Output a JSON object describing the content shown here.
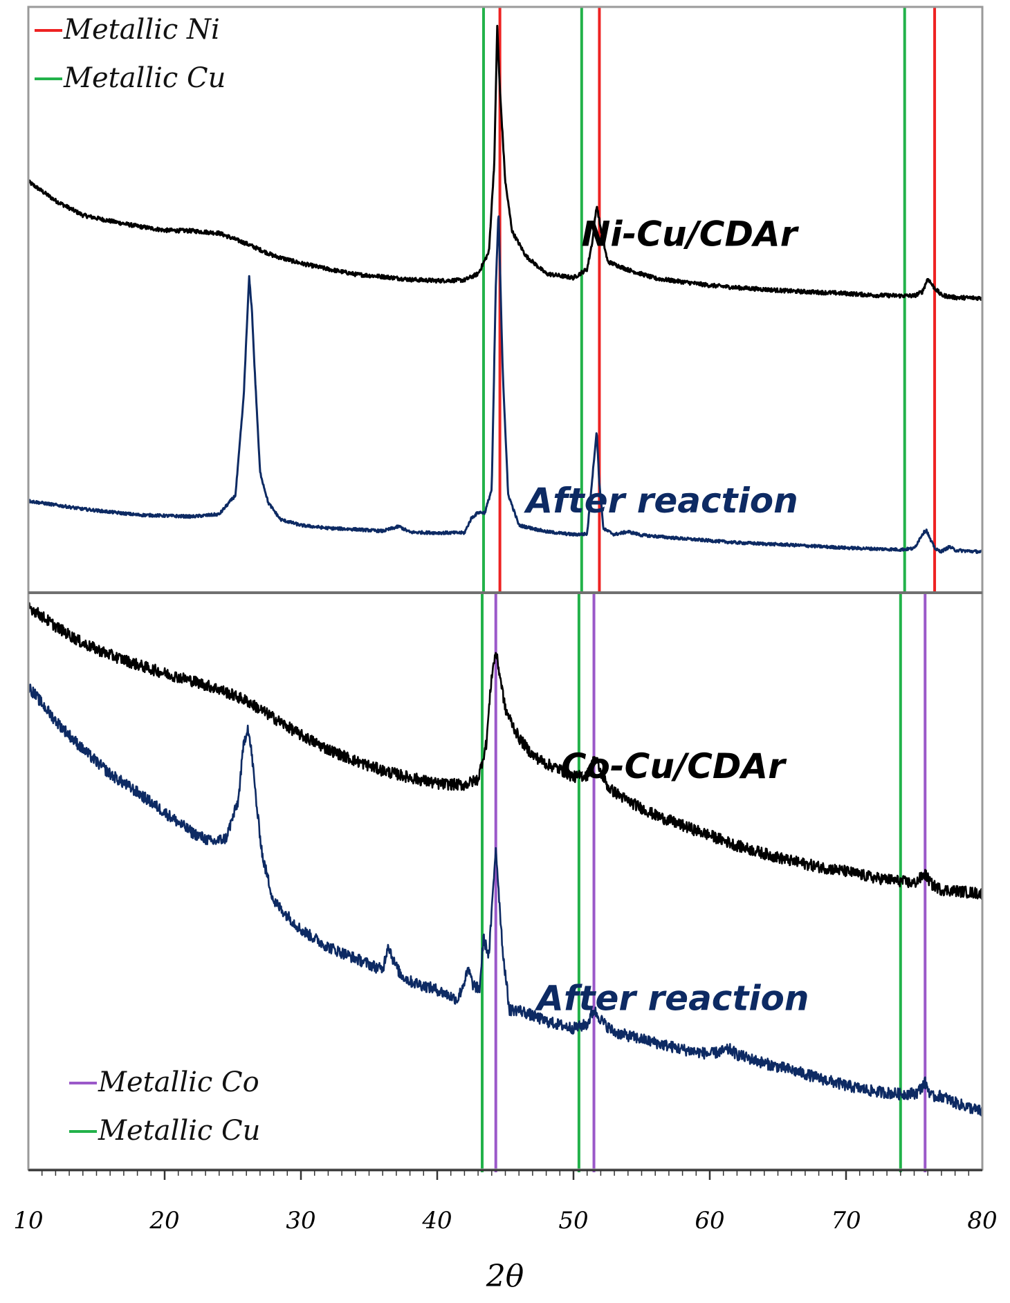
{
  "chart_data": {
    "type": "line",
    "title": "",
    "xlabel": "2θ",
    "ylabel": "",
    "xlim": [
      10,
      80
    ],
    "xticks": [
      10,
      20,
      30,
      40,
      50,
      60,
      70,
      80
    ],
    "colors": {
      "as_prepared": "#000000",
      "after_reaction": "#0d2a63",
      "metallic_ni": "#ee2222",
      "metallic_cu": "#22b24a",
      "metallic_co": "#9b59c9"
    },
    "panels": [
      {
        "id": "top",
        "ylim": [
          0,
          100
        ],
        "legend": {
          "position": "top-left",
          "entries": [
            {
              "label": "Metallic Ni",
              "color_key": "metallic_ni"
            },
            {
              "label": "Metallic Cu",
              "color_key": "metallic_cu"
            }
          ]
        },
        "reference_lines": [
          {
            "phase": "Metallic Cu",
            "color_key": "metallic_cu",
            "positions": [
              43.4,
              50.6,
              74.3
            ]
          },
          {
            "phase": "Metallic Ni",
            "color_key": "metallic_ni",
            "positions": [
              44.6,
              51.9,
              76.5
            ]
          }
        ],
        "series": [
          {
            "name": "Ni-Cu/CDAr",
            "color_key": "as_prepared",
            "label": "Ni-Cu/CDAr",
            "label_anchor": {
              "x": 58.5,
              "y": 59
            },
            "noise": 0.35,
            "x": [
              10,
              12,
              14,
              16,
              18,
              20,
              22,
              24,
              26,
              28,
              30,
              32,
              34,
              36,
              38,
              40,
              42,
              43,
              43.8,
              44.2,
              44.4,
              44.6,
              45,
              45.5,
              46.5,
              48,
              50,
              51,
              51.4,
              51.7,
              52,
              52.5,
              54,
              56,
              58,
              60,
              62,
              64,
              66,
              68,
              70,
              72,
              74,
              75,
              75.6,
              76,
              76.4,
              77,
              78,
              80
            ],
            "y": [
              70.1,
              66.8,
              64.3,
              63.3,
              62.4,
              61.7,
              61.6,
              61.2,
              59.4,
              57.3,
              56.0,
              55.0,
              54.1,
              53.7,
              53.2,
              53.0,
              53.1,
              54.2,
              58,
              74,
              97,
              86,
              70,
              61.5,
              57.3,
              54.2,
              53.5,
              55,
              60,
              66,
              62,
              56.3,
              54.9,
              53.4,
              52.8,
              52.2,
              51.8,
              51.5,
              51.2,
              51.0,
              50.8,
              50.5,
              50.4,
              50.4,
              51.1,
              53.4,
              52,
              50.5,
              50.1,
              50.0
            ]
          },
          {
            "name": "After reaction",
            "color_key": "after_reaction",
            "label": "After reaction",
            "label_anchor": {
              "x": 56.5,
              "y": 13
            },
            "noise": 0.25,
            "x": [
              10,
              14,
              18,
              22,
              24,
              25.2,
              25.8,
              26.2,
              26.4,
              26.6,
              27,
              27.6,
              28.5,
              30,
              32,
              34,
              36,
              37.2,
              38,
              40,
              42,
              42.5,
              43,
              43.5,
              44,
              44.3,
              44.5,
              44.8,
              45.2,
              46,
              48,
              50,
              51,
              51.5,
              51.7,
              51.9,
              52.2,
              53,
              54,
              55,
              56,
              58,
              62,
              66,
              70,
              74,
              75,
              75.6,
              75.9,
              76.2,
              76.6,
              77,
              77.6,
              78,
              80
            ],
            "y": [
              15.0,
              13.6,
              12.6,
              12.3,
              12.7,
              16.0,
              33.0,
              53.7,
              48.0,
              38.0,
              20.0,
              14.7,
              11.8,
              10.8,
              10.3,
              10.1,
              9.8,
              10.6,
              9.6,
              9.5,
              9.5,
              12.0,
              13.0,
              13.0,
              17.0,
              52.0,
              65.0,
              38.0,
              16.2,
              10.8,
              9.7,
              9.2,
              9.3,
              22,
              27,
              18,
              10.2,
              9.2,
              9.7,
              9.1,
              8.9,
              8.5,
              7.8,
              7.4,
              6.9,
              6.6,
              6.8,
              9.3,
              10.0,
              8.2,
              6.6,
              6.3,
              7.1,
              6.5,
              6.2
            ]
          }
        ]
      },
      {
        "id": "bottom",
        "ylim": [
          0,
          100
        ],
        "legend": {
          "position": "bottom-left",
          "entries": [
            {
              "label": "Metallic Co",
              "color_key": "metallic_co"
            },
            {
              "label": "Metallic Cu",
              "color_key": "metallic_cu"
            }
          ]
        },
        "reference_lines": [
          {
            "phase": "Metallic Cu",
            "color_key": "metallic_cu",
            "positions": [
              43.3,
              50.4,
              74.0
            ]
          },
          {
            "phase": "Metallic Co",
            "color_key": "metallic_co",
            "positions": [
              44.3,
              51.5,
              75.8
            ]
          }
        ],
        "series": [
          {
            "name": "Co-Cu/CDAr",
            "color_key": "as_prepared",
            "label": "Co-Cu/CDAr",
            "label_anchor": {
              "x": 57.3,
              "y": 68
            },
            "noise": 1.0,
            "x": [
              10,
              12,
              14,
              16,
              18,
              20,
              22,
              24,
              26,
              28,
              30,
              32,
              34,
              36,
              38,
              40,
              42,
              43,
              43.6,
              44,
              44.3,
              44.6,
              45,
              46,
              47,
              48,
              49,
              50,
              51,
              51.6,
              52,
              52.6,
              54,
              56,
              58,
              60,
              62,
              64,
              66,
              68,
              70,
              72,
              74,
              75,
              75.8,
              76.3,
              77,
              78,
              80
            ],
            "y": [
              98,
              94.5,
              91.5,
              89.5,
              87.8,
              86.3,
              85,
              83.5,
              81.5,
              78.5,
              75.5,
              73,
              71,
              69.3,
              68.1,
              67,
              66.8,
              67.8,
              74,
              86,
              90,
              86,
              80,
              75,
              72,
              70.5,
              69.5,
              68.2,
              68.5,
              71.7,
              69,
              66.2,
              64,
              61.5,
              59.7,
              58,
              56.2,
              54.8,
              53.5,
              52.5,
              51.7,
              50.6,
              50.0,
              49.6,
              51.2,
              49.4,
              48.5,
              48.3,
              47.8
            ]
          },
          {
            "name": "After reaction",
            "color_key": "after_reaction",
            "label": "After reaction",
            "label_anchor": {
              "x": 57.3,
              "y": 27.5
            },
            "noise": 1.0,
            "x": [
              10,
              12,
              14,
              16,
              18,
              20,
              22,
              23.5,
              24.5,
              25.4,
              25.8,
              26.1,
              26.4,
              26.8,
              27.2,
              28,
              29,
              30,
              32,
              34,
              36,
              36.4,
              36.8,
              37.3,
              38,
              40,
              41.5,
              42.3,
              42.6,
              43.1,
              43.4,
              43.8,
              44.3,
              44.8,
              45.3,
              46,
              48,
              50,
              51,
              51.5,
              51.8,
              52.3,
              53,
              55,
              58,
              60,
              61.5,
              62,
              64,
              66,
              68,
              70,
              72,
              74,
              75.2,
              75.8,
              76.3,
              77,
              78,
              80
            ],
            "y": [
              84,
              78,
              73,
              68.7,
              65.5,
              62,
              58.5,
              56.8,
              57.5,
              64,
              74,
              77,
              72,
              62,
              54,
              46.5,
              44,
              41.5,
              38.5,
              36.5,
              34.5,
              39,
              36,
              33.7,
              32.5,
              31,
              29.3,
              34.5,
              32,
              31,
              40,
              37,
              56,
              38,
              27.5,
              27.5,
              25.5,
              24.3,
              25.0,
              27.5,
              26.5,
              25,
              23.6,
              22.4,
              20.6,
              19.8,
              20.6,
              19.7,
              18.2,
              17.0,
              15.6,
              14.3,
              13.3,
              12.8,
              13.0,
              14.8,
              12.3,
              12.5,
              11.3,
              9.7
            ]
          }
        ]
      }
    ]
  }
}
